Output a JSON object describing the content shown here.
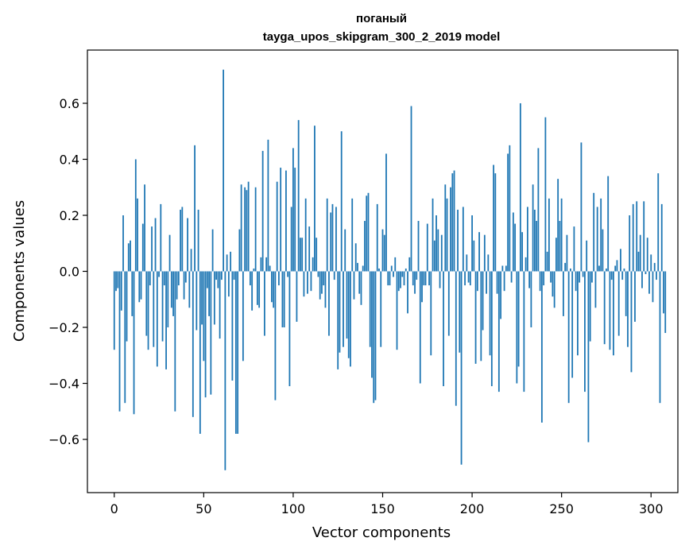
{
  "chart_data": {
    "type": "bar",
    "title_line1": "поганый",
    "title_line2": "tayga_upos_skipgram_300_2_2019 model",
    "xlabel": "Vector components",
    "ylabel": "Components values",
    "xlim": [
      -15,
      315
    ],
    "ylim": [
      -0.79,
      0.79
    ],
    "xticks": [
      0,
      50,
      100,
      150,
      200,
      250,
      300
    ],
    "xtick_labels": [
      "0",
      "50",
      "100",
      "150",
      "200",
      "250",
      "300"
    ],
    "yticks": [
      -0.6,
      -0.4,
      -0.2,
      0.0,
      0.2,
      0.4,
      0.6
    ],
    "ytick_labels": [
      "−0.6",
      "−0.4",
      "−0.2",
      "0.0",
      "0.2",
      "0.4",
      "0.6"
    ],
    "bar_color": "#1f77b4",
    "values": [
      -0.28,
      -0.07,
      -0.06,
      -0.5,
      -0.14,
      0.2,
      -0.47,
      -0.25,
      0.1,
      0.11,
      -0.16,
      -0.51,
      0.4,
      0.26,
      -0.11,
      -0.1,
      0.17,
      0.31,
      -0.23,
      -0.28,
      -0.05,
      0.16,
      -0.27,
      0.19,
      -0.34,
      -0.02,
      0.24,
      -0.25,
      -0.05,
      -0.35,
      -0.2,
      0.13,
      -0.13,
      -0.16,
      -0.5,
      -0.1,
      -0.05,
      0.22,
      0.23,
      -0.1,
      -0.04,
      0.19,
      -0.13,
      0.08,
      -0.52,
      0.45,
      -0.21,
      0.22,
      -0.58,
      -0.19,
      -0.32,
      -0.45,
      -0.06,
      -0.16,
      -0.44,
      0.15,
      -0.19,
      -0.03,
      -0.06,
      -0.24,
      -0.03,
      0.72,
      -0.71,
      0.06,
      -0.09,
      0.07,
      -0.39,
      -0.03,
      -0.58,
      -0.58,
      0.15,
      0.31,
      -0.32,
      0.3,
      0.29,
      0.32,
      -0.05,
      -0.14,
      0.01,
      0.3,
      -0.12,
      -0.13,
      0.05,
      0.43,
      -0.23,
      0.05,
      0.47,
      0.02,
      -0.11,
      -0.13,
      -0.46,
      0.32,
      -0.05,
      0.37,
      -0.2,
      -0.2,
      0.36,
      -0.02,
      -0.41,
      0.23,
      0.44,
      0.37,
      -0.18,
      0.54,
      0.12,
      0.12,
      -0.09,
      0.26,
      -0.08,
      0.16,
      -0.07,
      0.05,
      0.52,
      0.12,
      -0.02,
      -0.1,
      -0.08,
      -0.05,
      -0.13,
      0.26,
      -0.23,
      0.21,
      0.24,
      -0.03,
      0.23,
      -0.35,
      -0.29,
      0.5,
      -0.27,
      0.15,
      -0.24,
      -0.31,
      -0.34,
      0.26,
      -0.1,
      0.1,
      0.03,
      -0.08,
      -0.12,
      0.02,
      0.18,
      0.27,
      0.28,
      -0.27,
      -0.38,
      -0.47,
      -0.46,
      0.24,
      0.01,
      -0.27,
      0.15,
      0.13,
      0.42,
      -0.05,
      -0.05,
      0.02,
      -0.02,
      0.05,
      -0.28,
      -0.07,
      -0.06,
      -0.02,
      -0.05,
      0.01,
      -0.15,
      0.05,
      0.59,
      -0.05,
      -0.08,
      -0.03,
      0.18,
      -0.4,
      -0.11,
      -0.05,
      -0.05,
      0.17,
      -0.05,
      -0.3,
      0.26,
      0.11,
      0.2,
      0.15,
      -0.06,
      0.13,
      -0.41,
      0.31,
      0.26,
      -0.23,
      0.3,
      0.35,
      0.36,
      -0.48,
      0.22,
      -0.29,
      -0.69,
      0.23,
      -0.05,
      0.06,
      -0.04,
      -0.05,
      0.2,
      0.11,
      -0.33,
      -0.07,
      0.14,
      -0.32,
      -0.21,
      0.13,
      -0.08,
      0.06,
      -0.3,
      -0.41,
      0.38,
      0.35,
      -0.08,
      -0.43,
      -0.17,
      0.02,
      -0.07,
      0.02,
      0.42,
      0.45,
      -0.04,
      0.21,
      0.17,
      -0.4,
      -0.34,
      0.6,
      0.14,
      -0.43,
      0.05,
      0.23,
      -0.06,
      -0.2,
      0.31,
      0.22,
      0.18,
      0.44,
      -0.07,
      -0.54,
      -0.05,
      0.55,
      0.07,
      0.26,
      -0.04,
      -0.09,
      -0.13,
      0.12,
      0.33,
      0.18,
      0.26,
      -0.16,
      0.03,
      0.13,
      -0.47,
      0.01,
      -0.38,
      0.16,
      -0.07,
      -0.3,
      -0.04,
      0.46,
      -0.02,
      -0.43,
      0.11,
      -0.61,
      -0.25,
      -0.04,
      0.28,
      -0.13,
      0.23,
      0.02,
      0.26,
      0.15,
      -0.26,
      0.01,
      0.34,
      -0.28,
      -0.03,
      -0.3,
      0.02,
      0.04,
      -0.23,
      0.08,
      -0.03,
      0.01,
      -0.16,
      -0.27,
      0.2,
      -0.36,
      0.24,
      -0.18,
      0.25,
      0.07,
      0.13,
      -0.06,
      0.25,
      -0.01,
      0.12,
      -0.08,
      0.06,
      -0.11,
      0.03,
      -0.03,
      0.35,
      -0.47,
      0.24,
      -0.15,
      -0.22
    ]
  }
}
